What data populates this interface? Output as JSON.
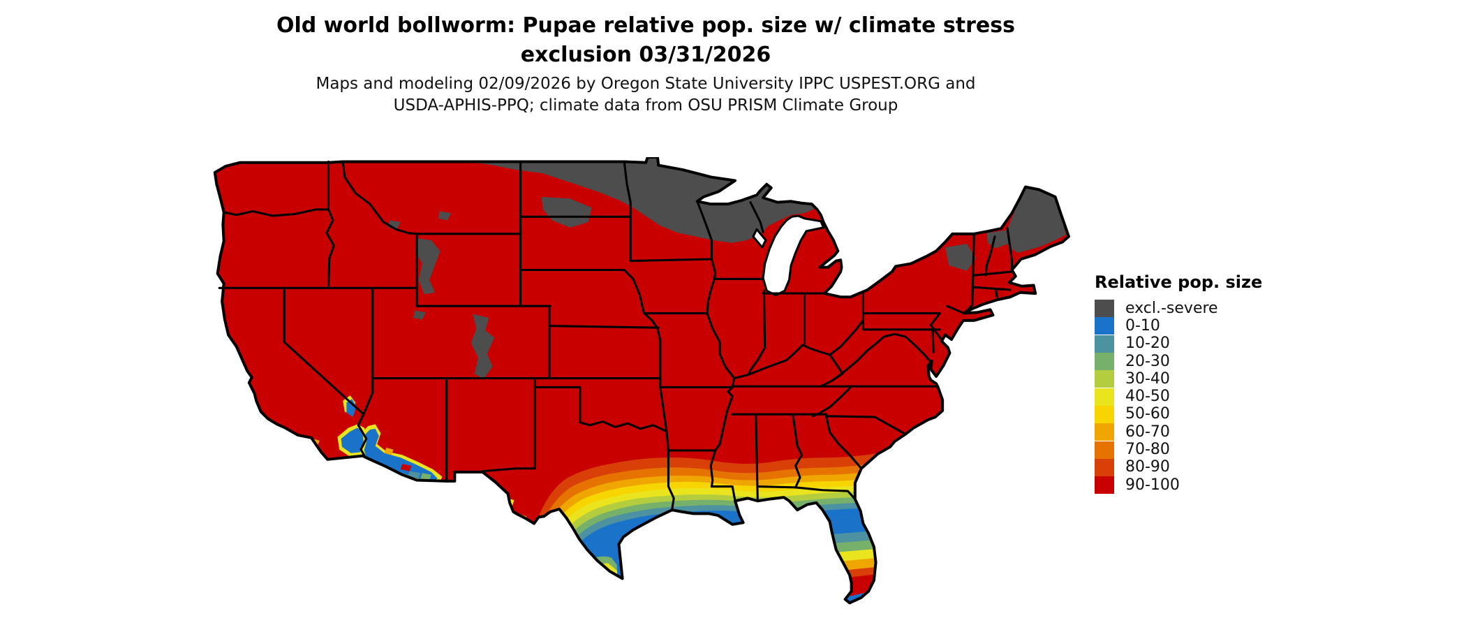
{
  "header": {
    "title_line1": "Old world bollworm: Pupae relative pop. size w/ climate stress",
    "title_line2": "exclusion 03/31/2026",
    "subtitle_line1": "Maps and modeling 02/09/2026 by Oregon State University IPPC USPEST.ORG and",
    "subtitle_line2": "USDA-APHIS-PPQ; climate data from OSU PRISM Climate Group"
  },
  "legend": {
    "title": "Relative pop. size",
    "items": [
      {
        "label": "excl.-severe",
        "color": "#4D4D4D"
      },
      {
        "label": "0-10",
        "color": "#1B72C9"
      },
      {
        "label": "10-20",
        "color": "#4C92A0"
      },
      {
        "label": "20-30",
        "color": "#76B06A"
      },
      {
        "label": "30-40",
        "color": "#B4CD3F"
      },
      {
        "label": "40-50",
        "color": "#EAE41F"
      },
      {
        "label": "50-60",
        "color": "#F7D500"
      },
      {
        "label": "60-70",
        "color": "#EFA600"
      },
      {
        "label": "70-80",
        "color": "#E67300"
      },
      {
        "label": "80-90",
        "color": "#D84008"
      },
      {
        "label": "90-100",
        "color": "#C90000"
      }
    ]
  },
  "palette": {
    "excl": "#4D4D4D",
    "b0": "#1B72C9",
    "b10": "#4C92A0",
    "b20": "#76B06A",
    "b30": "#B4CD3F",
    "b40": "#EAE41F",
    "b50": "#F7D500",
    "b60": "#EFA600",
    "b70": "#E67300",
    "b80": "#D84008",
    "b90": "#C90000",
    "border": "#000000",
    "background": "#FFFFFF"
  },
  "chart_data": {
    "type": "choropleth_map",
    "map": "Contiguous United States with black state boundaries (raster model output)",
    "title": "Old world bollworm: Pupae relative pop. size w/ climate stress exclusion 03/31/2026",
    "credit": "Maps and modeling 02/09/2026 by Oregon State University IPPC USPEST.ORG and USDA-APHIS-PPQ; climate data from OSU PRISM Climate Group",
    "legend_title": "Relative pop. size",
    "legend_position": "right",
    "categories": [
      "excl.-severe",
      "0-10",
      "10-20",
      "20-30",
      "30-40",
      "40-50",
      "50-60",
      "60-70",
      "70-80",
      "80-90",
      "90-100"
    ],
    "category_colors": [
      "#4D4D4D",
      "#1B72C9",
      "#4C92A0",
      "#76B06A",
      "#B4CD3F",
      "#EAE41F",
      "#F7D500",
      "#EFA600",
      "#E67300",
      "#D84008",
      "#C90000"
    ],
    "region_values": {
      "most_of_conus": "90-100",
      "northeast_north_dakota_northern_minnesota_northern_wisconsin_michigan_upper_peninsula": "excl.-severe",
      "northern_maine_adirondacks_northern_vermont_new_hampshire": "excl.-severe",
      "yellowstone_and_colorado_rocky_mountain_high_elevations": "excl.-severe (scattered)",
      "gulf_coastal_plain_texas_to_georgia": "banded gradient 80-90 -> 0-10 toward the coast",
      "southern_texas_and_gulf_coast_strip": "0-10",
      "rio_grande_valley_tip_of_texas": "reversal 20-30 -> 90-100 at the tip",
      "north_and_central_florida": "0-10",
      "central_to_south_florida": "reversal 10-20 -> 90-100 in the south, keys 0-10",
      "southern_arizona_southeastern_california_deserts": "0-10 with 10-30 pockets and 40-70 fringe"
    }
  }
}
